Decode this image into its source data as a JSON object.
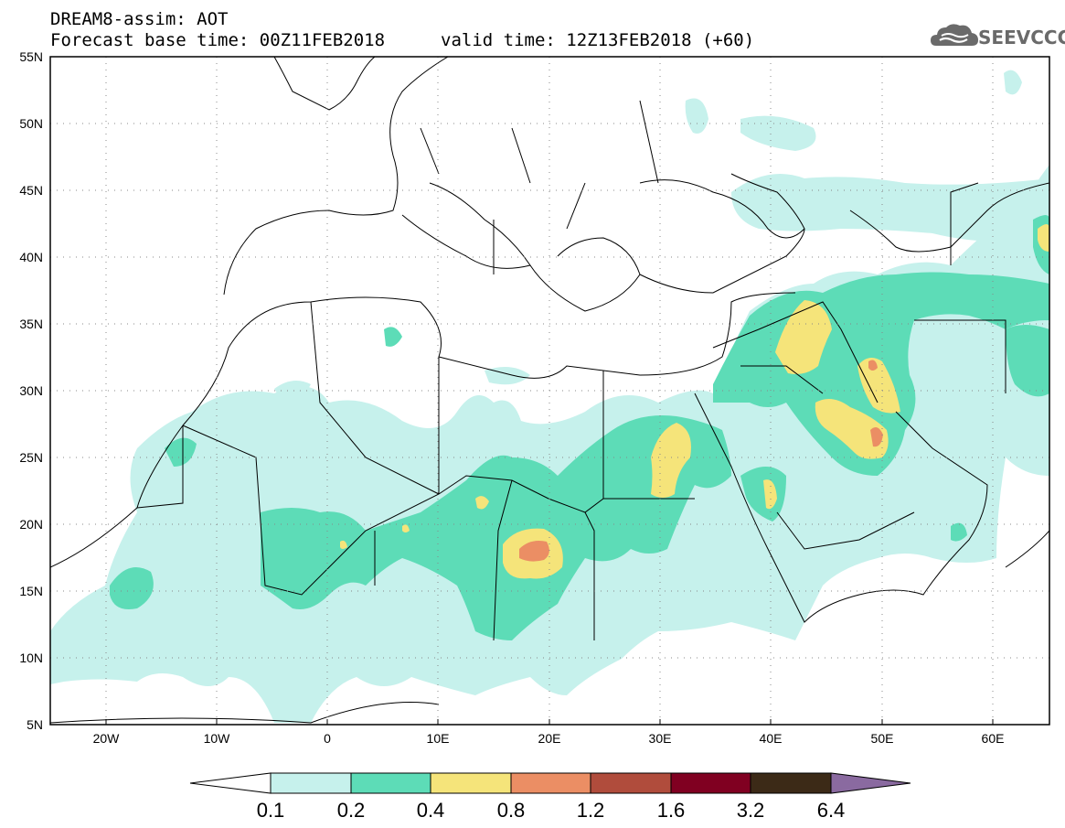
{
  "header": {
    "title": "DREAM8-assim: AOT",
    "base_time": "Forecast base time: 00Z11FEB2018",
    "valid_time": "valid time: 12Z13FEB2018 (+60)"
  },
  "logo": {
    "text": "SEEVCCC",
    "icon": "cloud-icon"
  },
  "map": {
    "lat_labels": [
      "55N",
      "50N",
      "45N",
      "40N",
      "35N",
      "30N",
      "25N",
      "20N",
      "15N",
      "10N",
      "5N"
    ],
    "lon_labels": [
      "20W",
      "10W",
      "0",
      "10E",
      "20E",
      "30E",
      "40E",
      "50E",
      "60E"
    ],
    "lat_range": [
      5,
      55
    ],
    "lon_range": [
      -25,
      65
    ],
    "gridlines": "dotted"
  },
  "legend": {
    "labels": [
      "0.1",
      "0.2",
      "0.4",
      "0.8",
      "1.2",
      "1.6",
      "3.2",
      "6.4"
    ],
    "colors": [
      "#ffffff",
      "#c6f1ec",
      "#5ddcb7",
      "#f5e47a",
      "#eb8e64",
      "#b04c3c",
      "#800021",
      "#3c2a17",
      "#8a6aa0"
    ]
  }
}
